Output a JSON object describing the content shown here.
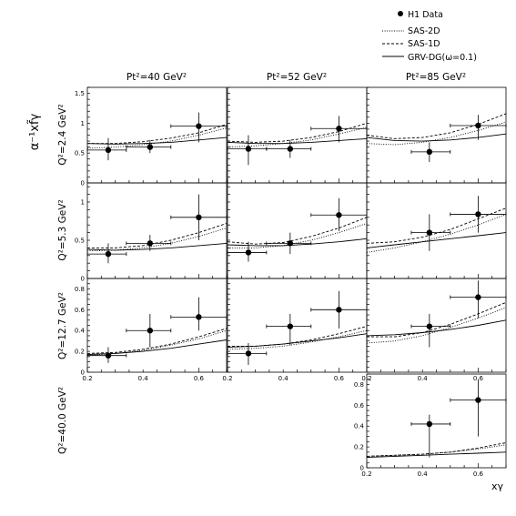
{
  "figure": {
    "ylabel": "α⁻¹xf̃γ",
    "xlabel": "xγ"
  },
  "legend": [
    {
      "label": "H1 Data",
      "style": "marker"
    },
    {
      "label": "SAS-2D",
      "style": "dotted"
    },
    {
      "label": "SAS-1D",
      "style": "dashed"
    },
    {
      "label": "GRV-DG(ω=0.1)",
      "style": "solid"
    }
  ],
  "columns": [
    "Pt²=40 GeV²",
    "Pt²=52 GeV²",
    "Pt²=85 GeV²"
  ],
  "rows": [
    "Q²=2.4 GeV²",
    "Q²=5.3 GeV²",
    "Q²=12.7 GeV²",
    "Q²=40.0 GeV²"
  ],
  "chart_data": [
    {
      "type": "scatter",
      "panel": "Q²=2.4 GeV², Pt²=40 GeV²",
      "xlim": [
        0.2,
        0.7
      ],
      "ylim": [
        0,
        1.6
      ],
      "yticks": [
        "0",
        "0.5",
        "1",
        "1.5"
      ],
      "points": [
        {
          "x": 0.275,
          "y": 0.55,
          "xlo": 0.2,
          "xhi": 0.34,
          "ylo": 0.38,
          "yhi": 0.75
        },
        {
          "x": 0.425,
          "y": 0.6,
          "xlo": 0.34,
          "xhi": 0.5,
          "ylo": 0.5,
          "yhi": 0.72
        },
        {
          "x": 0.6,
          "y": 0.95,
          "xlo": 0.5,
          "xhi": 0.7,
          "ylo": 0.68,
          "yhi": 1.18
        }
      ],
      "series": [
        {
          "name": "SAS-2D",
          "x": [
            0.2,
            0.3,
            0.4,
            0.5,
            0.6,
            0.7
          ],
          "values": [
            0.58,
            0.6,
            0.64,
            0.7,
            0.8,
            0.92
          ]
        },
        {
          "name": "SAS-1D",
          "x": [
            0.2,
            0.3,
            0.4,
            0.5,
            0.6,
            0.7
          ],
          "values": [
            0.66,
            0.66,
            0.69,
            0.75,
            0.84,
            0.98
          ]
        },
        {
          "name": "GRV-DG(ω=0.1)",
          "x": [
            0.2,
            0.3,
            0.4,
            0.5,
            0.6,
            0.7
          ],
          "values": [
            0.66,
            0.65,
            0.66,
            0.68,
            0.72,
            0.76
          ]
        }
      ]
    },
    {
      "type": "scatter",
      "panel": "Q²=2.4 GeV², Pt²=52 GeV²",
      "xlim": [
        0.2,
        0.7
      ],
      "ylim": [
        0,
        1.6
      ],
      "points": [
        {
          "x": 0.275,
          "y": 0.57,
          "xlo": 0.2,
          "xhi": 0.34,
          "ylo": 0.3,
          "yhi": 0.8
        },
        {
          "x": 0.425,
          "y": 0.57,
          "xlo": 0.34,
          "xhi": 0.5,
          "ylo": 0.42,
          "yhi": 0.72
        },
        {
          "x": 0.6,
          "y": 0.91,
          "xlo": 0.5,
          "xhi": 0.7,
          "ylo": 0.68,
          "yhi": 1.12
        }
      ],
      "series": [
        {
          "name": "SAS-2D",
          "x": [
            0.2,
            0.3,
            0.4,
            0.5,
            0.6,
            0.7
          ],
          "values": [
            0.6,
            0.62,
            0.66,
            0.72,
            0.82,
            0.93
          ]
        },
        {
          "name": "SAS-1D",
          "x": [
            0.2,
            0.3,
            0.4,
            0.5,
            0.6,
            0.7
          ],
          "values": [
            0.7,
            0.68,
            0.7,
            0.76,
            0.86,
            1.0
          ]
        },
        {
          "name": "GRV-DG(ω=0.1)",
          "x": [
            0.2,
            0.3,
            0.4,
            0.5,
            0.6,
            0.7
          ],
          "values": [
            0.68,
            0.66,
            0.66,
            0.68,
            0.71,
            0.74
          ]
        }
      ]
    },
    {
      "type": "scatter",
      "panel": "Q²=2.4 GeV², Pt²=85 GeV²",
      "xlim": [
        0.2,
        0.7
      ],
      "ylim": [
        0,
        1.6
      ],
      "points": [
        {
          "x": 0.425,
          "y": 0.52,
          "xlo": 0.36,
          "xhi": 0.5,
          "ylo": 0.35,
          "yhi": 0.68
        },
        {
          "x": 0.6,
          "y": 0.96,
          "xlo": 0.5,
          "xhi": 0.7,
          "ylo": 0.72,
          "yhi": 1.14
        }
      ],
      "series": [
        {
          "name": "SAS-2D",
          "x": [
            0.2,
            0.3,
            0.4,
            0.5,
            0.6,
            0.7
          ],
          "values": [
            0.66,
            0.64,
            0.68,
            0.76,
            0.88,
            1.02
          ]
        },
        {
          "name": "SAS-1D",
          "x": [
            0.2,
            0.3,
            0.4,
            0.5,
            0.6,
            0.7
          ],
          "values": [
            0.8,
            0.74,
            0.76,
            0.84,
            0.98,
            1.16
          ]
        },
        {
          "name": "GRV-DG(ω=0.1)",
          "x": [
            0.2,
            0.3,
            0.4,
            0.5,
            0.6,
            0.7
          ],
          "values": [
            0.76,
            0.71,
            0.7,
            0.72,
            0.76,
            0.82
          ]
        }
      ]
    },
    {
      "type": "scatter",
      "panel": "Q²=5.3 GeV², Pt²=40 GeV²",
      "xlim": [
        0.2,
        0.7
      ],
      "ylim": [
        0,
        1.25
      ],
      "yticks": [
        "0",
        "0.5",
        "1"
      ],
      "points": [
        {
          "x": 0.275,
          "y": 0.32,
          "xlo": 0.2,
          "xhi": 0.34,
          "ylo": 0.2,
          "yhi": 0.46
        },
        {
          "x": 0.425,
          "y": 0.46,
          "xlo": 0.34,
          "xhi": 0.5,
          "ylo": 0.36,
          "yhi": 0.57
        },
        {
          "x": 0.6,
          "y": 0.8,
          "xlo": 0.5,
          "xhi": 0.7,
          "ylo": 0.5,
          "yhi": 1.1
        }
      ],
      "series": [
        {
          "name": "SAS-2D",
          "x": [
            0.2,
            0.3,
            0.4,
            0.5,
            0.6,
            0.7
          ],
          "values": [
            0.36,
            0.37,
            0.4,
            0.46,
            0.55,
            0.66
          ]
        },
        {
          "name": "SAS-1D",
          "x": [
            0.2,
            0.3,
            0.4,
            0.5,
            0.6,
            0.7
          ],
          "values": [
            0.4,
            0.4,
            0.43,
            0.5,
            0.6,
            0.72
          ]
        },
        {
          "name": "GRV-DG(ω=0.1)",
          "x": [
            0.2,
            0.3,
            0.4,
            0.5,
            0.6,
            0.7
          ],
          "values": [
            0.38,
            0.37,
            0.38,
            0.4,
            0.43,
            0.46
          ]
        }
      ]
    },
    {
      "type": "scatter",
      "panel": "Q²=5.3 GeV², Pt²=52 GeV²",
      "xlim": [
        0.2,
        0.7
      ],
      "ylim": [
        0,
        1.25
      ],
      "points": [
        {
          "x": 0.275,
          "y": 0.34,
          "xlo": 0.2,
          "xhi": 0.34,
          "ylo": 0.22,
          "yhi": 0.48
        },
        {
          "x": 0.425,
          "y": 0.46,
          "xlo": 0.34,
          "xhi": 0.5,
          "ylo": 0.32,
          "yhi": 0.6
        },
        {
          "x": 0.6,
          "y": 0.83,
          "xlo": 0.5,
          "xhi": 0.7,
          "ylo": 0.62,
          "yhi": 1.05
        }
      ],
      "series": [
        {
          "name": "SAS-2D",
          "x": [
            0.2,
            0.3,
            0.4,
            0.5,
            0.6,
            0.7
          ],
          "values": [
            0.4,
            0.4,
            0.43,
            0.5,
            0.6,
            0.72
          ]
        },
        {
          "name": "SAS-1D",
          "x": [
            0.2,
            0.3,
            0.4,
            0.5,
            0.6,
            0.7
          ],
          "values": [
            0.48,
            0.45,
            0.47,
            0.55,
            0.66,
            0.8
          ]
        },
        {
          "name": "GRV-DG(ω=0.1)",
          "x": [
            0.2,
            0.3,
            0.4,
            0.5,
            0.6,
            0.7
          ],
          "values": [
            0.44,
            0.43,
            0.43,
            0.45,
            0.48,
            0.52
          ]
        }
      ]
    },
    {
      "type": "scatter",
      "panel": "Q²=5.3 GeV², Pt²=85 GeV²",
      "xlim": [
        0.2,
        0.7
      ],
      "ylim": [
        0,
        1.25
      ],
      "points": [
        {
          "x": 0.425,
          "y": 0.6,
          "xlo": 0.36,
          "xhi": 0.5,
          "ylo": 0.36,
          "yhi": 0.84
        },
        {
          "x": 0.6,
          "y": 0.84,
          "xlo": 0.5,
          "xhi": 0.7,
          "ylo": 0.6,
          "yhi": 1.08
        }
      ],
      "series": [
        {
          "name": "SAS-2D",
          "x": [
            0.2,
            0.3,
            0.4,
            0.5,
            0.6,
            0.7
          ],
          "values": [
            0.34,
            0.4,
            0.48,
            0.58,
            0.7,
            0.84
          ]
        },
        {
          "name": "SAS-1D",
          "x": [
            0.2,
            0.3,
            0.4,
            0.5,
            0.6,
            0.7
          ],
          "values": [
            0.46,
            0.48,
            0.54,
            0.64,
            0.78,
            0.92
          ]
        },
        {
          "name": "GRV-DG(ω=0.1)",
          "x": [
            0.2,
            0.3,
            0.4,
            0.5,
            0.6,
            0.7
          ],
          "values": [
            0.4,
            0.44,
            0.48,
            0.52,
            0.56,
            0.6
          ]
        }
      ]
    },
    {
      "type": "scatter",
      "panel": "Q²=12.7 GeV², Pt²=40 GeV²",
      "xlim": [
        0.2,
        0.7
      ],
      "ylim": [
        0,
        0.9
      ],
      "yticks": [
        "0",
        "0.2",
        "0.4",
        "0.6",
        "0.8"
      ],
      "points": [
        {
          "x": 0.275,
          "y": 0.16,
          "xlo": 0.2,
          "xhi": 0.34,
          "ylo": 0.09,
          "yhi": 0.24
        },
        {
          "x": 0.425,
          "y": 0.4,
          "xlo": 0.34,
          "xhi": 0.5,
          "ylo": 0.24,
          "yhi": 0.56
        },
        {
          "x": 0.6,
          "y": 0.53,
          "xlo": 0.5,
          "xhi": 0.7,
          "ylo": 0.4,
          "yhi": 0.72
        }
      ],
      "series": [
        {
          "name": "SAS-2D",
          "x": [
            0.2,
            0.3,
            0.4,
            0.5,
            0.6,
            0.7
          ],
          "values": [
            0.16,
            0.18,
            0.21,
            0.26,
            0.32,
            0.4
          ]
        },
        {
          "name": "SAS-1D",
          "x": [
            0.2,
            0.3,
            0.4,
            0.5,
            0.6,
            0.7
          ],
          "values": [
            0.18,
            0.19,
            0.22,
            0.27,
            0.34,
            0.42
          ]
        },
        {
          "name": "GRV-DG(ω=0.1)",
          "x": [
            0.2,
            0.3,
            0.4,
            0.5,
            0.6,
            0.7
          ],
          "values": [
            0.17,
            0.18,
            0.2,
            0.23,
            0.27,
            0.31
          ]
        }
      ]
    },
    {
      "type": "scatter",
      "panel": "Q²=12.7 GeV², Pt²=52 GeV²",
      "xlim": [
        0.2,
        0.7
      ],
      "ylim": [
        0,
        0.9
      ],
      "points": [
        {
          "x": 0.275,
          "y": 0.18,
          "xlo": 0.2,
          "xhi": 0.34,
          "ylo": 0.07,
          "yhi": 0.28
        },
        {
          "x": 0.425,
          "y": 0.44,
          "xlo": 0.34,
          "xhi": 0.5,
          "ylo": 0.26,
          "yhi": 0.56
        },
        {
          "x": 0.6,
          "y": 0.6,
          "xlo": 0.5,
          "xhi": 0.7,
          "ylo": 0.42,
          "yhi": 0.78
        }
      ],
      "series": [
        {
          "name": "SAS-2D",
          "x": [
            0.2,
            0.3,
            0.4,
            0.5,
            0.6,
            0.7
          ],
          "values": [
            0.22,
            0.23,
            0.25,
            0.29,
            0.34,
            0.4
          ]
        },
        {
          "name": "SAS-1D",
          "x": [
            0.2,
            0.3,
            0.4,
            0.5,
            0.6,
            0.7
          ],
          "values": [
            0.25,
            0.25,
            0.27,
            0.31,
            0.37,
            0.44
          ]
        },
        {
          "name": "GRV-DG(ω=0.1)",
          "x": [
            0.2,
            0.3,
            0.4,
            0.5,
            0.6,
            0.7
          ],
          "values": [
            0.24,
            0.25,
            0.27,
            0.3,
            0.33,
            0.37
          ]
        }
      ]
    },
    {
      "type": "scatter",
      "panel": "Q²=12.7 GeV², Pt²=85 GeV²",
      "xlim": [
        0.2,
        0.7
      ],
      "ylim": [
        0,
        0.9
      ],
      "points": [
        {
          "x": 0.425,
          "y": 0.44,
          "xlo": 0.36,
          "xhi": 0.5,
          "ylo": 0.24,
          "yhi": 0.56
        },
        {
          "x": 0.6,
          "y": 0.72,
          "xlo": 0.5,
          "xhi": 0.7,
          "ylo": 0.52,
          "yhi": 0.88
        }
      ],
      "series": [
        {
          "name": "SAS-2D",
          "x": [
            0.2,
            0.3,
            0.4,
            0.5,
            0.6,
            0.7
          ],
          "values": [
            0.28,
            0.3,
            0.35,
            0.43,
            0.52,
            0.62
          ]
        },
        {
          "name": "SAS-1D",
          "x": [
            0.2,
            0.3,
            0.4,
            0.5,
            0.6,
            0.7
          ],
          "values": [
            0.34,
            0.34,
            0.38,
            0.46,
            0.56,
            0.67
          ]
        },
        {
          "name": "GRV-DG(ω=0.1)",
          "x": [
            0.2,
            0.3,
            0.4,
            0.5,
            0.6,
            0.7
          ],
          "values": [
            0.35,
            0.36,
            0.38,
            0.41,
            0.45,
            0.5
          ]
        }
      ]
    },
    {
      "type": "scatter",
      "panel": "Q²=40.0 GeV², Pt²=85 GeV²",
      "xlim": [
        0.2,
        0.7
      ],
      "ylim": [
        0,
        0.9
      ],
      "yticks": [
        "0",
        "0.2",
        "0.4",
        "0.6",
        "0.8"
      ],
      "xticks": [
        "0.2",
        "0.4",
        "0.6"
      ],
      "points": [
        {
          "x": 0.425,
          "y": 0.42,
          "xlo": 0.36,
          "xhi": 0.5,
          "ylo": 0.1,
          "yhi": 0.51
        },
        {
          "x": 0.6,
          "y": 0.65,
          "xlo": 0.5,
          "xhi": 0.7,
          "ylo": 0.3,
          "yhi": 0.85
        }
      ],
      "series": [
        {
          "name": "SAS-2D",
          "x": [
            0.2,
            0.3,
            0.4,
            0.5,
            0.6,
            0.7
          ],
          "values": [
            0.11,
            0.12,
            0.13,
            0.15,
            0.18,
            0.22
          ]
        },
        {
          "name": "SAS-1D",
          "x": [
            0.2,
            0.3,
            0.4,
            0.5,
            0.6,
            0.7
          ],
          "values": [
            0.11,
            0.12,
            0.13,
            0.15,
            0.19,
            0.24
          ]
        },
        {
          "name": "GRV-DG(ω=0.1)",
          "x": [
            0.2,
            0.3,
            0.4,
            0.5,
            0.6,
            0.7
          ],
          "values": [
            0.1,
            0.11,
            0.12,
            0.13,
            0.14,
            0.15
          ]
        }
      ]
    }
  ]
}
